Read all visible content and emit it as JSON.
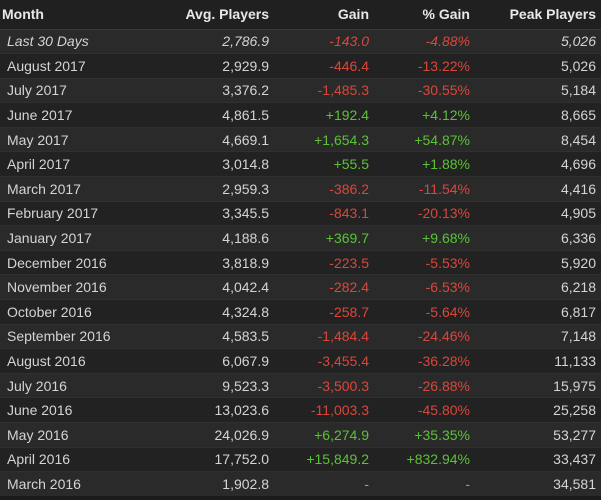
{
  "headers": {
    "month": "Month",
    "avg": "Avg. Players",
    "gain": "Gain",
    "pct": "% Gain",
    "peak": "Peak Players"
  },
  "rows": [
    {
      "month": "Last 30 Days",
      "avg": "2,786.9",
      "gain": "-143.0",
      "pct": "-4.88%",
      "peak": "5,026",
      "trend": "neg"
    },
    {
      "month": "August 2017",
      "avg": "2,929.9",
      "gain": "-446.4",
      "pct": "-13.22%",
      "peak": "5,026",
      "trend": "neg"
    },
    {
      "month": "July 2017",
      "avg": "3,376.2",
      "gain": "-1,485.3",
      "pct": "-30.55%",
      "peak": "5,184",
      "trend": "neg"
    },
    {
      "month": "June 2017",
      "avg": "4,861.5",
      "gain": "+192.4",
      "pct": "+4.12%",
      "peak": "8,665",
      "trend": "pos"
    },
    {
      "month": "May 2017",
      "avg": "4,669.1",
      "gain": "+1,654.3",
      "pct": "+54.87%",
      "peak": "8,454",
      "trend": "pos"
    },
    {
      "month": "April 2017",
      "avg": "3,014.8",
      "gain": "+55.5",
      "pct": "+1.88%",
      "peak": "4,696",
      "trend": "pos"
    },
    {
      "month": "March 2017",
      "avg": "2,959.3",
      "gain": "-386.2",
      "pct": "-11.54%",
      "peak": "4,416",
      "trend": "neg"
    },
    {
      "month": "February 2017",
      "avg": "3,345.5",
      "gain": "-843.1",
      "pct": "-20.13%",
      "peak": "4,905",
      "trend": "neg"
    },
    {
      "month": "January 2017",
      "avg": "4,188.6",
      "gain": "+369.7",
      "pct": "+9.68%",
      "peak": "6,336",
      "trend": "pos"
    },
    {
      "month": "December 2016",
      "avg": "3,818.9",
      "gain": "-223.5",
      "pct": "-5.53%",
      "peak": "5,920",
      "trend": "neg"
    },
    {
      "month": "November 2016",
      "avg": "4,042.4",
      "gain": "-282.4",
      "pct": "-6.53%",
      "peak": "6,218",
      "trend": "neg"
    },
    {
      "month": "October 2016",
      "avg": "4,324.8",
      "gain": "-258.7",
      "pct": "-5.64%",
      "peak": "6,817",
      "trend": "neg"
    },
    {
      "month": "September 2016",
      "avg": "4,583.5",
      "gain": "-1,484.4",
      "pct": "-24.46%",
      "peak": "7,148",
      "trend": "neg"
    },
    {
      "month": "August 2016",
      "avg": "6,067.9",
      "gain": "-3,455.4",
      "pct": "-36.28%",
      "peak": "11,133",
      "trend": "neg"
    },
    {
      "month": "July 2016",
      "avg": "9,523.3",
      "gain": "-3,500.3",
      "pct": "-26.88%",
      "peak": "15,975",
      "trend": "neg"
    },
    {
      "month": "June 2016",
      "avg": "13,023.6",
      "gain": "-11,003.3",
      "pct": "-45.80%",
      "peak": "25,258",
      "trend": "neg"
    },
    {
      "month": "May 2016",
      "avg": "24,026.9",
      "gain": "+6,274.9",
      "pct": "+35.35%",
      "peak": "53,277",
      "trend": "pos"
    },
    {
      "month": "April 2016",
      "avg": "17,752.0",
      "gain": "+15,849.2",
      "pct": "+832.94%",
      "peak": "33,437",
      "trend": "pos"
    },
    {
      "month": "March 2016",
      "avg": "1,902.8",
      "gain": "-",
      "pct": "-",
      "peak": "34,581",
      "trend": "neutral"
    }
  ],
  "colors": {
    "negative": "#d9473a",
    "positive": "#5bc236",
    "neutral": "#9a9a9a"
  }
}
